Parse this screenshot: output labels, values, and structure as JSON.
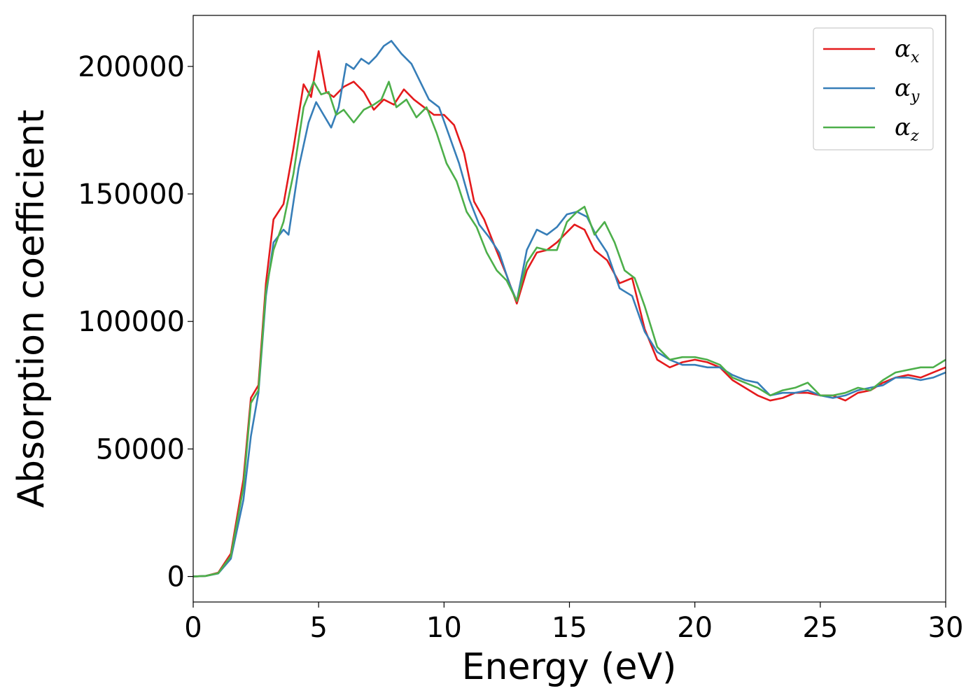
{
  "chart_data": {
    "type": "line",
    "title": "",
    "xlabel": "Energy (eV)",
    "ylabel": "Absorption coefficient",
    "xlim": [
      0,
      30
    ],
    "ylim": [
      -10000,
      220000
    ],
    "x_ticks": [
      0,
      5,
      10,
      15,
      20,
      25,
      30
    ],
    "y_ticks": [
      0,
      50000,
      100000,
      150000,
      200000
    ],
    "x_tick_labels": [
      "0",
      "5",
      "10",
      "15",
      "20",
      "25",
      "30"
    ],
    "y_tick_labels": [
      "0",
      "50000",
      "100000",
      "150000",
      "200000"
    ],
    "grid": false,
    "legend_position": "top-right",
    "series": [
      {
        "name": "αx",
        "symbol": "α",
        "subscript": "x",
        "color": "#e41a1c",
        "points": [
          [
            0,
            0
          ],
          [
            0.5,
            200
          ],
          [
            1.0,
            1500
          ],
          [
            1.5,
            9000
          ],
          [
            2.0,
            38000
          ],
          [
            2.3,
            70000
          ],
          [
            2.6,
            75000
          ],
          [
            2.9,
            115000
          ],
          [
            3.2,
            140000
          ],
          [
            3.6,
            146000
          ],
          [
            4.0,
            168000
          ],
          [
            4.4,
            193000
          ],
          [
            4.7,
            188000
          ],
          [
            5.0,
            206000
          ],
          [
            5.3,
            190000
          ],
          [
            5.6,
            188000
          ],
          [
            6.0,
            192000
          ],
          [
            6.4,
            194000
          ],
          [
            6.8,
            190000
          ],
          [
            7.2,
            183000
          ],
          [
            7.6,
            187000
          ],
          [
            8.0,
            185000
          ],
          [
            8.4,
            191000
          ],
          [
            8.8,
            187000
          ],
          [
            9.2,
            184000
          ],
          [
            9.6,
            181000
          ],
          [
            10.0,
            181000
          ],
          [
            10.4,
            177000
          ],
          [
            10.8,
            166000
          ],
          [
            11.2,
            147000
          ],
          [
            11.6,
            140000
          ],
          [
            12.0,
            130000
          ],
          [
            12.5,
            118000
          ],
          [
            12.9,
            107000
          ],
          [
            13.3,
            120000
          ],
          [
            13.7,
            127000
          ],
          [
            14.1,
            128000
          ],
          [
            14.5,
            131000
          ],
          [
            14.9,
            135000
          ],
          [
            15.2,
            138000
          ],
          [
            15.6,
            136000
          ],
          [
            16.0,
            128000
          ],
          [
            16.5,
            124000
          ],
          [
            17.0,
            115000
          ],
          [
            17.5,
            117000
          ],
          [
            18.0,
            97000
          ],
          [
            18.5,
            85000
          ],
          [
            19.0,
            82000
          ],
          [
            19.5,
            84000
          ],
          [
            20.0,
            85000
          ],
          [
            20.5,
            84000
          ],
          [
            21.0,
            82000
          ],
          [
            21.5,
            77000
          ],
          [
            22.0,
            74000
          ],
          [
            22.5,
            71000
          ],
          [
            23.0,
            69000
          ],
          [
            23.5,
            70000
          ],
          [
            24.0,
            72000
          ],
          [
            24.5,
            72000
          ],
          [
            25.0,
            71000
          ],
          [
            25.5,
            71000
          ],
          [
            26.0,
            69000
          ],
          [
            26.5,
            72000
          ],
          [
            27.0,
            73000
          ],
          [
            27.5,
            76000
          ],
          [
            28.0,
            78000
          ],
          [
            28.5,
            79000
          ],
          [
            29.0,
            78000
          ],
          [
            29.5,
            80000
          ],
          [
            30.0,
            82000
          ]
        ]
      },
      {
        "name": "αy",
        "symbol": "α",
        "subscript": "y",
        "color": "#377eb8",
        "points": [
          [
            0,
            0
          ],
          [
            0.5,
            200
          ],
          [
            1.0,
            1200
          ],
          [
            1.5,
            7000
          ],
          [
            2.0,
            30000
          ],
          [
            2.3,
            55000
          ],
          [
            2.6,
            72000
          ],
          [
            2.9,
            110000
          ],
          [
            3.2,
            131000
          ],
          [
            3.6,
            136000
          ],
          [
            3.8,
            134000
          ],
          [
            4.2,
            160000
          ],
          [
            4.6,
            178000
          ],
          [
            4.9,
            186000
          ],
          [
            5.2,
            181000
          ],
          [
            5.5,
            176000
          ],
          [
            5.8,
            184000
          ],
          [
            6.1,
            201000
          ],
          [
            6.4,
            199000
          ],
          [
            6.7,
            203000
          ],
          [
            7.0,
            201000
          ],
          [
            7.3,
            204000
          ],
          [
            7.6,
            208000
          ],
          [
            7.9,
            210000
          ],
          [
            8.3,
            205000
          ],
          [
            8.7,
            201000
          ],
          [
            9.0,
            195000
          ],
          [
            9.4,
            187000
          ],
          [
            9.8,
            184000
          ],
          [
            10.2,
            173000
          ],
          [
            10.6,
            162000
          ],
          [
            11.0,
            148000
          ],
          [
            11.4,
            138000
          ],
          [
            11.8,
            133000
          ],
          [
            12.2,
            127000
          ],
          [
            12.6,
            115000
          ],
          [
            12.9,
            108000
          ],
          [
            13.3,
            128000
          ],
          [
            13.7,
            136000
          ],
          [
            14.1,
            134000
          ],
          [
            14.5,
            137000
          ],
          [
            14.9,
            142000
          ],
          [
            15.3,
            143000
          ],
          [
            15.7,
            141000
          ],
          [
            16.1,
            133000
          ],
          [
            16.5,
            127000
          ],
          [
            17.0,
            113000
          ],
          [
            17.5,
            110000
          ],
          [
            18.0,
            96000
          ],
          [
            18.5,
            88000
          ],
          [
            19.0,
            85000
          ],
          [
            19.5,
            83000
          ],
          [
            20.0,
            83000
          ],
          [
            20.5,
            82000
          ],
          [
            21.0,
            82000
          ],
          [
            21.5,
            79000
          ],
          [
            22.0,
            77000
          ],
          [
            22.5,
            76000
          ],
          [
            23.0,
            71000
          ],
          [
            23.5,
            72000
          ],
          [
            24.0,
            72000
          ],
          [
            24.5,
            73000
          ],
          [
            25.0,
            71000
          ],
          [
            25.5,
            70000
          ],
          [
            26.0,
            71000
          ],
          [
            26.5,
            73000
          ],
          [
            27.0,
            74000
          ],
          [
            27.5,
            75000
          ],
          [
            28.0,
            78000
          ],
          [
            28.5,
            78000
          ],
          [
            29.0,
            77000
          ],
          [
            29.5,
            78000
          ],
          [
            30.0,
            80000
          ]
        ]
      },
      {
        "name": "αz",
        "symbol": "α",
        "subscript": "z",
        "color": "#4daf4a",
        "points": [
          [
            0,
            0
          ],
          [
            0.5,
            200
          ],
          [
            1.0,
            1300
          ],
          [
            1.5,
            8000
          ],
          [
            2.0,
            35000
          ],
          [
            2.3,
            68000
          ],
          [
            2.6,
            73000
          ],
          [
            2.9,
            112000
          ],
          [
            3.2,
            128000
          ],
          [
            3.6,
            139000
          ],
          [
            4.0,
            158000
          ],
          [
            4.4,
            184000
          ],
          [
            4.8,
            194000
          ],
          [
            5.1,
            189000
          ],
          [
            5.4,
            190000
          ],
          [
            5.7,
            181000
          ],
          [
            6.0,
            183000
          ],
          [
            6.4,
            178000
          ],
          [
            6.8,
            183000
          ],
          [
            7.2,
            185000
          ],
          [
            7.5,
            187000
          ],
          [
            7.8,
            194000
          ],
          [
            8.1,
            184000
          ],
          [
            8.5,
            187000
          ],
          [
            8.9,
            180000
          ],
          [
            9.3,
            184000
          ],
          [
            9.7,
            174000
          ],
          [
            10.1,
            162000
          ],
          [
            10.5,
            155000
          ],
          [
            10.9,
            143000
          ],
          [
            11.3,
            137000
          ],
          [
            11.7,
            127000
          ],
          [
            12.1,
            120000
          ],
          [
            12.5,
            116000
          ],
          [
            12.9,
            108000
          ],
          [
            13.3,
            123000
          ],
          [
            13.7,
            129000
          ],
          [
            14.1,
            128000
          ],
          [
            14.5,
            128000
          ],
          [
            14.9,
            139000
          ],
          [
            15.3,
            143000
          ],
          [
            15.6,
            145000
          ],
          [
            16.0,
            134000
          ],
          [
            16.4,
            139000
          ],
          [
            16.8,
            131000
          ],
          [
            17.2,
            120000
          ],
          [
            17.6,
            117000
          ],
          [
            18.0,
            106000
          ],
          [
            18.5,
            90000
          ],
          [
            19.0,
            85000
          ],
          [
            19.5,
            86000
          ],
          [
            20.0,
            86000
          ],
          [
            20.5,
            85000
          ],
          [
            21.0,
            83000
          ],
          [
            21.5,
            78000
          ],
          [
            22.0,
            76000
          ],
          [
            22.5,
            74000
          ],
          [
            23.0,
            71000
          ],
          [
            23.5,
            73000
          ],
          [
            24.0,
            74000
          ],
          [
            24.5,
            76000
          ],
          [
            25.0,
            71000
          ],
          [
            25.5,
            71000
          ],
          [
            26.0,
            72000
          ],
          [
            26.5,
            74000
          ],
          [
            27.0,
            73000
          ],
          [
            27.5,
            77000
          ],
          [
            28.0,
            80000
          ],
          [
            28.5,
            81000
          ],
          [
            29.0,
            82000
          ],
          [
            29.5,
            82000
          ],
          [
            30.0,
            85000
          ]
        ]
      }
    ]
  }
}
